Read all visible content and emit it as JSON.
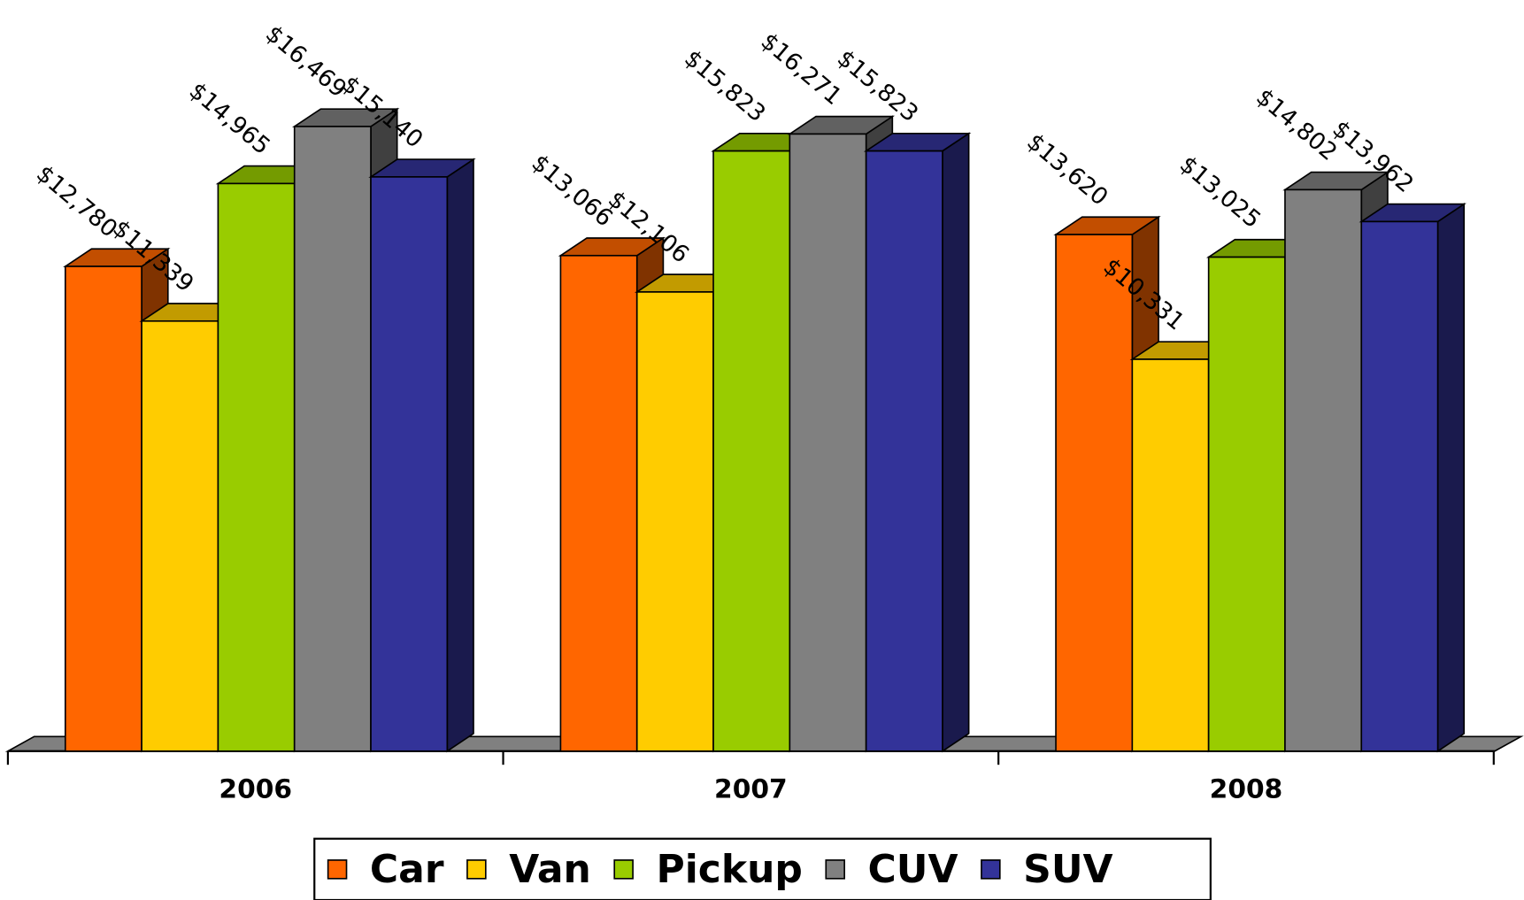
{
  "chart_data": {
    "type": "bar3d",
    "categories": [
      "2006",
      "2007",
      "2008"
    ],
    "series": [
      {
        "name": "Car",
        "color": "#FF6600",
        "values": [
          12780,
          13066,
          13620
        ],
        "value_labels": [
          "$12,780",
          "$13,066",
          "$13,620"
        ]
      },
      {
        "name": "Van",
        "color": "#FFCC00",
        "values": [
          11339,
          12106,
          10331
        ],
        "value_labels": [
          "$11,339",
          "$12,106",
          "$10,331"
        ]
      },
      {
        "name": "Pickup",
        "color": "#99CC00",
        "values": [
          14965,
          15823,
          13025
        ],
        "value_labels": [
          "$14,965",
          "$15,823",
          "$13,025"
        ]
      },
      {
        "name": "CUV",
        "color": "#808080",
        "values": [
          16469,
          16271,
          14802
        ],
        "value_labels": [
          "$16,469",
          "$16,271",
          "$14,802"
        ]
      },
      {
        "name": "SUV",
        "color": "#333399",
        "values": [
          15140,
          15823,
          13962
        ],
        "value_labels": [
          "$15,140",
          "$15,823",
          "$13,962"
        ]
      }
    ],
    "legend": "bottom"
  }
}
